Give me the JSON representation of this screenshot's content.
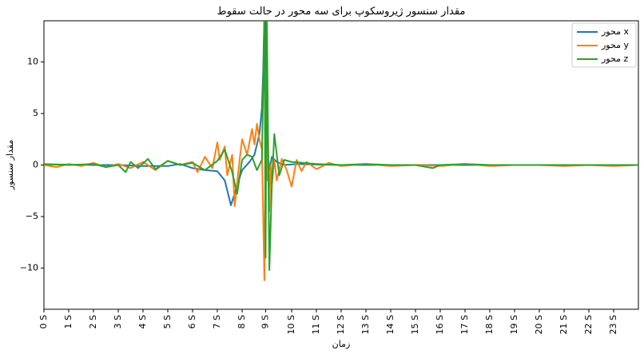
{
  "chart_data": {
    "type": "line",
    "title": "مقدار سنسور ژیروسکوپ برای سه محور در حالت سقوط",
    "xlabel": "زمان",
    "ylabel": "مقدار سنسور",
    "xlim": [
      0,
      24
    ],
    "ylim": [
      -14,
      14
    ],
    "x_ticks": [
      {
        "pos": 0,
        "label": "0 S"
      },
      {
        "pos": 1,
        "label": "1 S"
      },
      {
        "pos": 2,
        "label": "2 S"
      },
      {
        "pos": 3,
        "label": "3 S"
      },
      {
        "pos": 4,
        "label": "4 S"
      },
      {
        "pos": 5,
        "label": "5 S"
      },
      {
        "pos": 6,
        "label": "6 S"
      },
      {
        "pos": 7,
        "label": "7 S"
      },
      {
        "pos": 8,
        "label": "8 S"
      },
      {
        "pos": 8.95,
        "label": "9 S"
      },
      {
        "pos": 10,
        "label": "10 S"
      },
      {
        "pos": 11,
        "label": "11 S"
      },
      {
        "pos": 12,
        "label": "12 S"
      },
      {
        "pos": 13,
        "label": "13 S"
      },
      {
        "pos": 14,
        "label": "14 S"
      },
      {
        "pos": 15,
        "label": "15 S"
      },
      {
        "pos": 16,
        "label": "16 S"
      },
      {
        "pos": 17,
        "label": "17 S"
      },
      {
        "pos": 18,
        "label": "18 S"
      },
      {
        "pos": 19,
        "label": "19 S"
      },
      {
        "pos": 20,
        "label": "20 S"
      },
      {
        "pos": 21,
        "label": "21 S"
      },
      {
        "pos": 22,
        "label": "22 S"
      },
      {
        "pos": 23,
        "label": "23 S"
      }
    ],
    "y_ticks": [
      {
        "value": 10,
        "label": "10"
      },
      {
        "value": 5,
        "label": "5"
      },
      {
        "value": 0,
        "label": "0"
      },
      {
        "value": -5,
        "label": "−5"
      },
      {
        "value": -10,
        "label": "−10"
      }
    ],
    "legend_position": "top-right",
    "series": [
      {
        "name": "محور x",
        "color": "#1f77b4",
        "x": [
          0,
          1,
          2,
          3,
          4,
          5,
          5.5,
          6,
          6.5,
          7,
          7.3,
          7.55,
          7.8,
          8.0,
          8.3,
          8.5,
          8.7,
          8.8,
          8.85,
          8.9,
          8.95,
          9.0,
          9.1,
          9.2,
          9.4,
          9.7,
          10.2,
          11,
          12,
          13,
          14,
          15,
          16,
          17,
          18,
          19,
          20,
          21,
          22,
          23,
          24
        ],
        "y": [
          0.05,
          0.05,
          0.0,
          0.0,
          -0.1,
          -0.1,
          0.1,
          -0.3,
          -0.5,
          -0.6,
          -1.5,
          -3.9,
          -2.0,
          -0.5,
          0.3,
          1.0,
          3.0,
          5.5,
          9.0,
          14.5,
          14.5,
          2.0,
          -0.5,
          0.8,
          0.3,
          0.0,
          0.1,
          0.05,
          0.0,
          0.0,
          0.0,
          0.0,
          0.0,
          0.0,
          0.0,
          0.0,
          0.0,
          0.0,
          0.0,
          0.0,
          0.0
        ]
      },
      {
        "name": "محور y",
        "color": "#ff7f0e",
        "x": [
          0,
          0.5,
          1,
          1.5,
          2,
          2.5,
          3,
          3.5,
          4,
          4.5,
          5,
          5.5,
          6,
          6.2,
          6.5,
          6.8,
          7.0,
          7.1,
          7.3,
          7.4,
          7.6,
          7.7,
          7.9,
          8.0,
          8.2,
          8.4,
          8.5,
          8.6,
          8.7,
          8.8,
          8.85,
          8.9,
          8.95,
          9.0,
          9.05,
          9.1,
          9.15,
          9.2,
          9.3,
          9.4,
          9.6,
          9.8,
          10.0,
          10.2,
          10.4,
          10.6,
          11,
          11.5,
          12,
          13,
          14,
          15,
          16,
          17,
          18,
          19,
          20,
          21,
          22,
          23,
          24
        ],
        "y": [
          0.0,
          -0.2,
          0.1,
          -0.1,
          0.2,
          -0.2,
          0.1,
          -0.3,
          0.3,
          -0.5,
          0.4,
          0.0,
          0.3,
          -0.7,
          0.8,
          -0.3,
          2.2,
          0.5,
          1.8,
          -1.0,
          1.0,
          -4.0,
          0.5,
          2.5,
          1.0,
          3.5,
          2.0,
          4.0,
          2.5,
          1.5,
          -4.5,
          -11.2,
          2.5,
          -1.5,
          2.5,
          -4.5,
          0.0,
          -2.0,
          0.5,
          -1.5,
          0.6,
          -0.5,
          -2.1,
          0.5,
          -0.6,
          0.3,
          -0.4,
          0.2,
          -0.1,
          0.1,
          -0.1,
          0.0,
          -0.1,
          0.1,
          -0.1,
          0.0,
          0.0,
          -0.1,
          0.0,
          -0.1,
          0.0
        ]
      },
      {
        "name": "محور z",
        "color": "#2ca02c",
        "x": [
          0,
          1,
          2,
          2.5,
          3,
          3.3,
          3.5,
          3.8,
          4.2,
          4.5,
          5,
          5.5,
          6,
          6.5,
          7,
          7.3,
          7.6,
          7.8,
          8.0,
          8.2,
          8.4,
          8.6,
          8.8,
          8.9,
          8.95,
          9.0,
          9.05,
          9.1,
          9.2,
          9.3,
          9.5,
          9.7,
          10,
          10.5,
          11,
          12,
          13,
          14,
          15,
          15.7,
          16,
          17,
          18,
          19,
          20,
          21,
          22,
          23,
          24
        ],
        "y": [
          0.1,
          0.0,
          0.1,
          -0.2,
          0.0,
          -0.7,
          0.3,
          -0.3,
          0.6,
          -0.4,
          0.4,
          0.0,
          0.2,
          -0.5,
          0.4,
          1.5,
          -0.7,
          -2.8,
          0.5,
          1.0,
          0.8,
          -0.5,
          0.5,
          14.5,
          -9.0,
          14.5,
          1.5,
          -10.2,
          -2.0,
          3.0,
          -1.0,
          0.5,
          0.3,
          0.2,
          0.1,
          0.0,
          0.1,
          0.0,
          0.0,
          -0.3,
          0.0,
          0.1,
          0.0,
          0.0,
          0.0,
          0.0,
          0.0,
          0.0,
          0.0
        ]
      }
    ]
  }
}
